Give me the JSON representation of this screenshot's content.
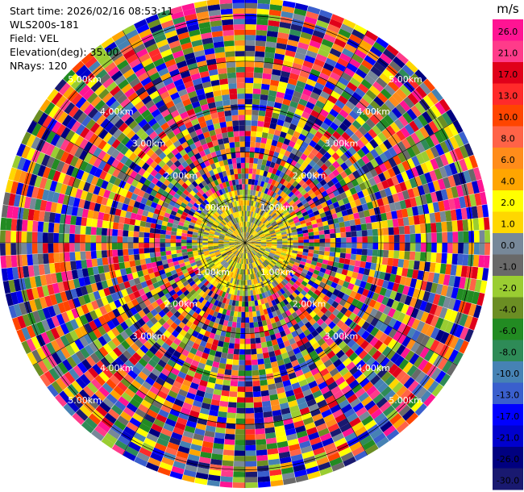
{
  "header": {
    "start_time": "Start time: 2026/02/16 08:53:11",
    "instrument": "WLS200s-181",
    "field": "Field: VEL",
    "elevation": "Elevation(deg): 35.00",
    "nrays": "NRays: 120"
  },
  "chart_data": {
    "type": "heatmap",
    "projection": "polar-ppi",
    "title": "",
    "xlabel": "",
    "ylabel": "",
    "field": "VEL",
    "n_rays": 120,
    "range_rings": [
      {
        "range_km": 1.0,
        "label": "1.00km"
      },
      {
        "range_km": 2.0,
        "label": "2.00km"
      },
      {
        "range_km": 3.0,
        "label": "3.00km"
      },
      {
        "range_km": 4.0,
        "label": "4.00km"
      },
      {
        "range_km": 5.0,
        "label": "5.00km"
      }
    ],
    "max_range_km": 5.4,
    "colorbar": {
      "unit": "m/s",
      "placement": "right",
      "bins": [
        {
          "label": "26.0",
          "color": "#ff1493"
        },
        {
          "label": "21.0",
          "color": "#ff3b8a"
        },
        {
          "label": "17.0",
          "color": "#e0001a"
        },
        {
          "label": "13.0",
          "color": "#ff2a2a"
        },
        {
          "label": "10.0",
          "color": "#ff4500"
        },
        {
          "label": "8.0",
          "color": "#ff6347"
        },
        {
          "label": "6.0",
          "color": "#ff8c1a"
        },
        {
          "label": "4.0",
          "color": "#ffa500"
        },
        {
          "label": "2.0",
          "color": "#ffff00"
        },
        {
          "label": "1.0",
          "color": "#ffd700"
        },
        {
          "label": "0.0",
          "color": "#778899"
        },
        {
          "label": "-1.0",
          "color": "#696969"
        },
        {
          "label": "-2.0",
          "color": "#9acd32"
        },
        {
          "label": "-4.0",
          "color": "#6b8e23"
        },
        {
          "label": "-6.0",
          "color": "#228b22"
        },
        {
          "label": "-8.0",
          "color": "#2e8b57"
        },
        {
          "label": "-10.0",
          "color": "#4682b4"
        },
        {
          "label": "-13.0",
          "color": "#3a5fcd"
        },
        {
          "label": "-17.0",
          "color": "#0000ff"
        },
        {
          "label": "-21.0",
          "color": "#0000cd"
        },
        {
          "label": "-26.0",
          "color": "#000080"
        },
        {
          "label": "-30.0",
          "color": "#191970"
        }
      ]
    }
  }
}
